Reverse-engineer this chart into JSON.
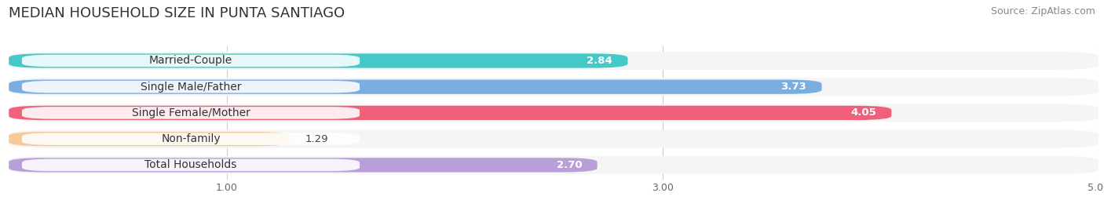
{
  "title": "MEDIAN HOUSEHOLD SIZE IN PUNTA SANTIAGO",
  "source": "Source: ZipAtlas.com",
  "categories": [
    "Married-Couple",
    "Single Male/Father",
    "Single Female/Mother",
    "Non-family",
    "Total Households"
  ],
  "values": [
    2.84,
    3.73,
    4.05,
    1.29,
    2.7
  ],
  "bar_colors": [
    "#45c8c8",
    "#7baee0",
    "#f0607a",
    "#f5c998",
    "#b89fd8"
  ],
  "xlim": [
    0,
    5.0
  ],
  "xticks": [
    1.0,
    3.0,
    5.0
  ],
  "background_color": "#ffffff",
  "bar_bg_color": "#e8e8e8",
  "row_bg_color": "#f5f5f5",
  "title_fontsize": 13,
  "source_fontsize": 9,
  "label_fontsize": 10,
  "value_fontsize": 9.5
}
